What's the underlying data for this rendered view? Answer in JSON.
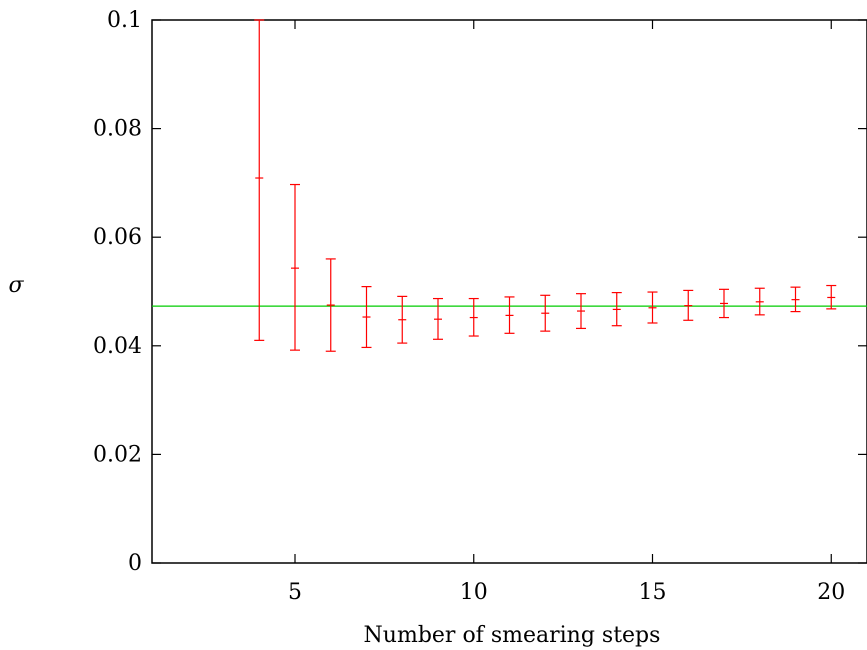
{
  "chart_data": {
    "type": "scatter",
    "xlabel": "Number of smearing steps",
    "ylabel": "σ",
    "xlim": [
      1,
      21
    ],
    "ylim": [
      0,
      0.1
    ],
    "xticks": [
      5,
      10,
      15,
      20
    ],
    "yticks": [
      0,
      0.02,
      0.04,
      0.06,
      0.08,
      0.1
    ],
    "xtick_labels": [
      "5",
      "10",
      "15",
      "20"
    ],
    "ytick_labels": [
      "0",
      "0.02",
      "0.04",
      "0.06",
      "0.08",
      "0.1"
    ],
    "grid": false,
    "series": [
      {
        "color": "#ff0000",
        "points": [
          {
            "x": 4,
            "y": 0.0709,
            "ylow": 0.041,
            "yhigh": 0.1
          },
          {
            "x": 5,
            "y": 0.0543,
            "ylow": 0.0392,
            "yhigh": 0.0697
          },
          {
            "x": 6,
            "y": 0.0475,
            "ylow": 0.039,
            "yhigh": 0.056
          },
          {
            "x": 7,
            "y": 0.0453,
            "ylow": 0.0397,
            "yhigh": 0.0509
          },
          {
            "x": 8,
            "y": 0.0448,
            "ylow": 0.0405,
            "yhigh": 0.0491
          },
          {
            "x": 9,
            "y": 0.0449,
            "ylow": 0.0412,
            "yhigh": 0.0487
          },
          {
            "x": 10,
            "y": 0.0452,
            "ylow": 0.0418,
            "yhigh": 0.0487
          },
          {
            "x": 11,
            "y": 0.0456,
            "ylow": 0.0423,
            "yhigh": 0.049
          },
          {
            "x": 12,
            "y": 0.046,
            "ylow": 0.0427,
            "yhigh": 0.0493
          },
          {
            "x": 13,
            "y": 0.0464,
            "ylow": 0.0432,
            "yhigh": 0.0496
          },
          {
            "x": 14,
            "y": 0.0467,
            "ylow": 0.0437,
            "yhigh": 0.0498
          },
          {
            "x": 15,
            "y": 0.047,
            "ylow": 0.0442,
            "yhigh": 0.0499
          },
          {
            "x": 16,
            "y": 0.0474,
            "ylow": 0.0447,
            "yhigh": 0.0502
          },
          {
            "x": 17,
            "y": 0.0478,
            "ylow": 0.0452,
            "yhigh": 0.0504
          },
          {
            "x": 18,
            "y": 0.0481,
            "ylow": 0.0457,
            "yhigh": 0.0506
          },
          {
            "x": 19,
            "y": 0.0485,
            "ylow": 0.0463,
            "yhigh": 0.0508
          },
          {
            "x": 20,
            "y": 0.0489,
            "ylow": 0.0468,
            "yhigh": 0.0511
          }
        ]
      }
    ],
    "reference_line": {
      "y": 0.0473,
      "color": "#00cc00"
    }
  }
}
